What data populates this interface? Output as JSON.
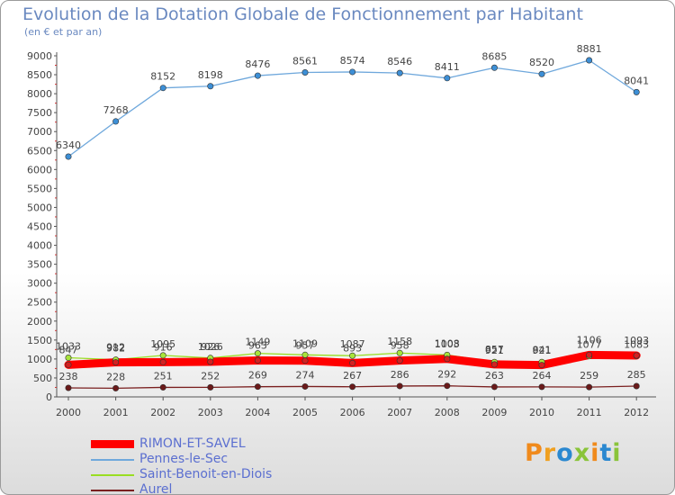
{
  "header": {
    "title": "Evolution de la Dotation Globale de Fonctionnement par Habitant",
    "subtitle": "(en € et par an)"
  },
  "colors": {
    "rimon": "#ff0000",
    "pennes": "#6fa8dc",
    "saint_benoit": "#99dd22",
    "aurel": "#7a1f1f",
    "axis": "#555555",
    "legend_text": "#5b6fd0"
  },
  "legend": {
    "items": [
      {
        "label": "RIMON-ET-SAVEL",
        "color": "#ff0000"
      },
      {
        "label": "Pennes-le-Sec",
        "color": "#6fa8dc"
      },
      {
        "label": "Saint-Benoit-en-Diois",
        "color": "#99dd22"
      },
      {
        "label": "Aurel",
        "color": "#7a1f1f"
      }
    ]
  },
  "logo": {
    "text": "Proxiti"
  },
  "chart_data": {
    "type": "line",
    "title": "Evolution de la Dotation Globale de Fonctionnement par Habitant",
    "subtitle": "(en € et par an)",
    "x": [
      2000,
      2001,
      2002,
      2003,
      2004,
      2005,
      2006,
      2007,
      2008,
      2009,
      2010,
      2011,
      2012
    ],
    "ylim": [
      0,
      9000
    ],
    "yticks": [
      0,
      500,
      1000,
      1500,
      2000,
      2500,
      3000,
      3500,
      4000,
      4500,
      5000,
      5500,
      6000,
      6500,
      7000,
      7500,
      8000,
      8500,
      9000
    ],
    "series": [
      {
        "name": "RIMON-ET-SAVEL",
        "values": [
          847,
          912,
          916,
          926,
          963,
          957,
          893,
          958,
          1003,
          857,
          841,
          1106,
          1093
        ]
      },
      {
        "name": "Pennes-le-Sec",
        "values": [
          6340,
          7268,
          8152,
          8198,
          8476,
          8561,
          8574,
          8546,
          8411,
          8685,
          8520,
          8881,
          8041
        ]
      },
      {
        "name": "Saint-Benoit-en-Diois",
        "values": [
          1033,
          982,
          1095,
          1026,
          1149,
          1109,
          1087,
          1158,
          1108,
          921,
          921,
          1077,
          1083
        ]
      },
      {
        "name": "Aurel",
        "values": [
          238,
          228,
          251,
          252,
          269,
          274,
          267,
          286,
          292,
          263,
          264,
          259,
          285
        ]
      }
    ]
  }
}
